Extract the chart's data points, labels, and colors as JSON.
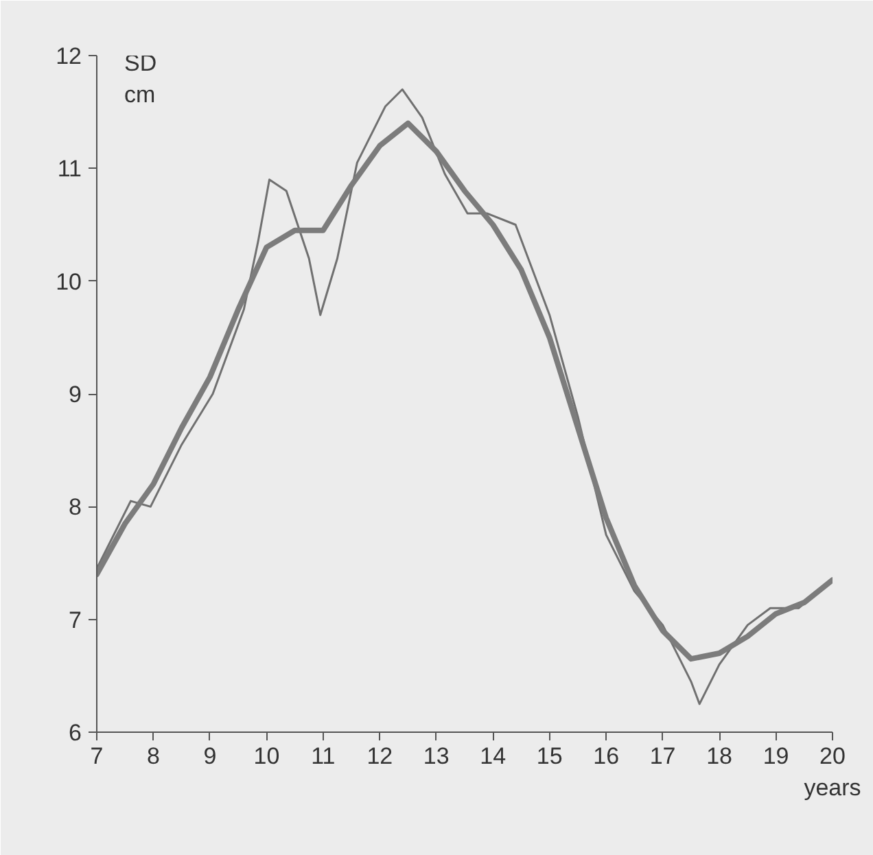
{
  "chart_data": {
    "type": "line",
    "ylabel": "SD\ncm",
    "xlabel": "years",
    "xlim": [
      7,
      20
    ],
    "ylim": [
      6,
      12
    ],
    "xticks": [
      7,
      8,
      9,
      10,
      11,
      12,
      13,
      14,
      15,
      16,
      17,
      18,
      19,
      20
    ],
    "yticks": [
      6,
      7,
      8,
      9,
      10,
      11,
      12
    ],
    "grid": false,
    "marker": "none",
    "series": [
      {
        "color": "#707070",
        "x": [
          7,
          7.6,
          7.95,
          8.5,
          9.05,
          9.6,
          9.85,
          10.05,
          10.35,
          10.75,
          10.95,
          11.25,
          11.6,
          12.1,
          12.4,
          12.75,
          13.15,
          13.55,
          13.9,
          14.4,
          15,
          15.5,
          16,
          16.5,
          17,
          17.5,
          17.65,
          18,
          18.5,
          18.9,
          19.4,
          20
        ],
        "values": [
          7.45,
          8.05,
          8.0,
          8.55,
          9.0,
          9.75,
          10.35,
          10.9,
          10.8,
          10.2,
          9.7,
          10.2,
          11.05,
          11.55,
          11.7,
          11.45,
          10.95,
          10.6,
          10.6,
          10.5,
          9.7,
          8.8,
          7.75,
          7.25,
          6.95,
          6.45,
          6.25,
          6.6,
          6.95,
          7.1,
          7.1,
          7.35
        ]
      },
      {
        "color": "#7c7c7c",
        "x": [
          7,
          7.5,
          8,
          8.5,
          9,
          9.5,
          10,
          10.5,
          11,
          11.5,
          12,
          12.5,
          13,
          13.5,
          14,
          14.5,
          15,
          15.5,
          16,
          16.5,
          17,
          17.5,
          18,
          18.5,
          19,
          19.5,
          20
        ],
        "values": [
          7.4,
          7.85,
          8.2,
          8.7,
          9.15,
          9.75,
          10.3,
          10.45,
          10.45,
          10.85,
          11.2,
          11.4,
          11.15,
          10.8,
          10.5,
          10.1,
          9.5,
          8.7,
          7.9,
          7.3,
          6.9,
          6.65,
          6.7,
          6.85,
          7.05,
          7.15,
          7.35
        ]
      }
    ]
  }
}
